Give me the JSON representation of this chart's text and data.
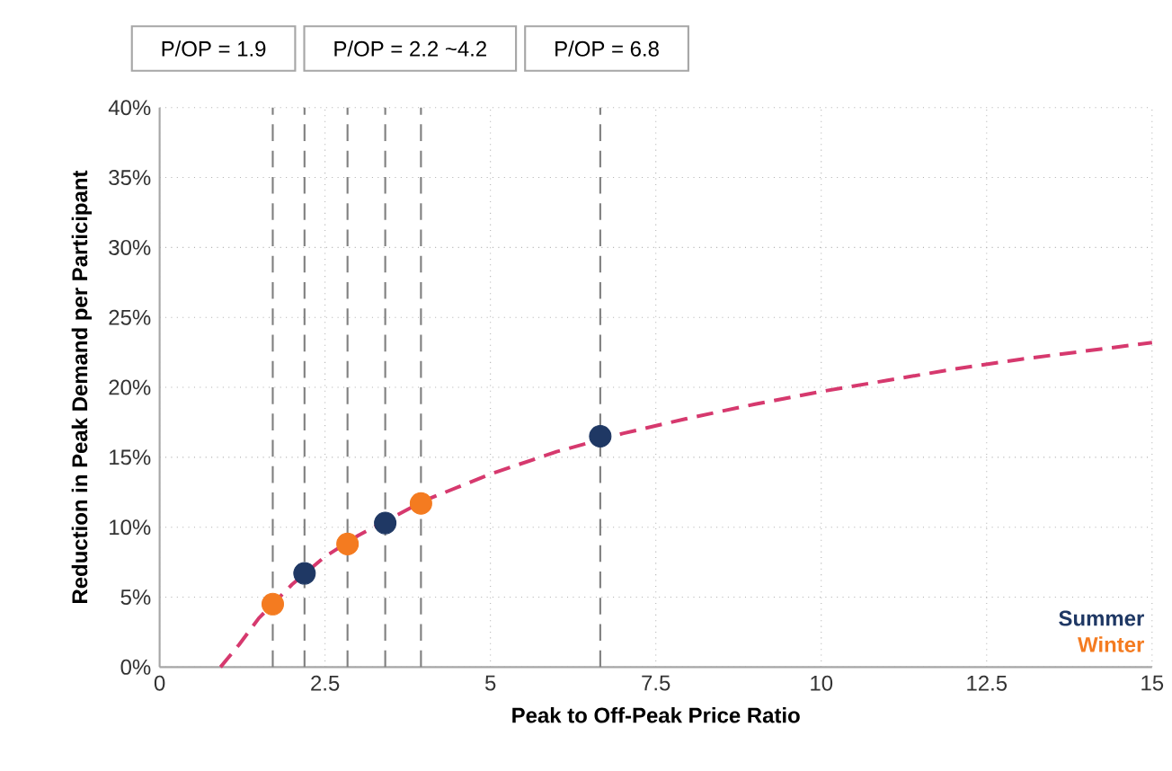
{
  "chart_data": {
    "type": "scatter",
    "xlabel": "Peak to Off-Peak Price Ratio",
    "ylabel": "Reduction in Peak Demand per Participant",
    "xlim": [
      0,
      15
    ],
    "ylim": [
      0,
      40
    ],
    "xticks": [
      0,
      2.5,
      5,
      7.5,
      10,
      12.5,
      15
    ],
    "yticks": [
      {
        "value": 0,
        "label": "0%"
      },
      {
        "value": 5,
        "label": "5%"
      },
      {
        "value": 10,
        "label": "10%"
      },
      {
        "value": 15,
        "label": "15%"
      },
      {
        "value": 20,
        "label": "20%"
      },
      {
        "value": 25,
        "label": "25%"
      },
      {
        "value": 30,
        "label": "30%"
      },
      {
        "value": 35,
        "label": "35%"
      },
      {
        "value": 40,
        "label": "40%"
      }
    ],
    "grid": true,
    "legend": "bottom right",
    "marker": "circle",
    "annotations": [
      "P/OP = 1.9",
      "P/OP = 2.2 ~4.2",
      "P/OP = 6.8"
    ],
    "ref_lines": [
      {
        "axis": "x",
        "value": 1.71,
        "color": "#808080",
        "line_style": "dashed"
      },
      {
        "axis": "x",
        "value": 2.19,
        "color": "#808080",
        "line_style": "dashed"
      },
      {
        "axis": "x",
        "value": 2.84,
        "color": "#808080",
        "line_style": "dashed"
      },
      {
        "axis": "x",
        "value": 3.41,
        "color": "#808080",
        "line_style": "dashed"
      },
      {
        "axis": "x",
        "value": 3.95,
        "color": "#808080",
        "line_style": "dashed"
      },
      {
        "axis": "x",
        "value": 6.66,
        "color": "#808080",
        "line_style": "dashed"
      }
    ],
    "series": [
      {
        "type": "line",
        "color": "#d6396e",
        "line_style": "dashed",
        "marker": "none",
        "x": [
          0.92,
          1.2,
          1.5,
          2,
          2.5,
          3,
          4,
          5,
          6,
          7,
          8,
          9,
          10,
          11,
          12,
          13,
          14,
          15
        ],
        "values": [
          0,
          1.6,
          3.5,
          5.9,
          7.9,
          9.4,
          11.9,
          13.8,
          15.4,
          16.7,
          17.8,
          18.8,
          19.7,
          20.5,
          21.3,
          22.0,
          22.6,
          23.2
        ]
      },
      {
        "name": "Summer",
        "color": "#1f3864",
        "x": [
          2.19,
          3.41,
          6.66
        ],
        "values": [
          6.7,
          10.3,
          16.5
        ]
      },
      {
        "name": "Winter",
        "color": "#f47b20",
        "x": [
          1.71,
          2.84,
          3.95
        ],
        "values": [
          4.5,
          8.8,
          11.7
        ]
      }
    ]
  }
}
